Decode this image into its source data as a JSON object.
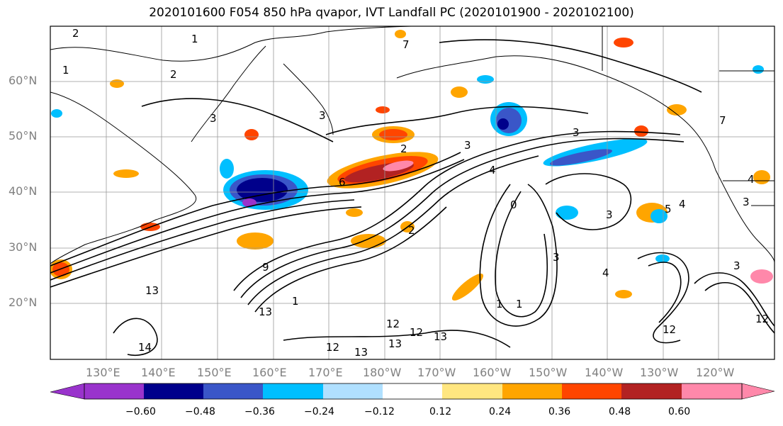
{
  "title": "2020101600 F054 850 hPa qvapor, IVT Landfall PC (2020101900 - 2020102100)",
  "map": {
    "lat_labels": [
      "60°N",
      "50°N",
      "40°N",
      "30°N",
      "20°N"
    ],
    "lon_labels": [
      "130°E",
      "140°E",
      "150°E",
      "160°E",
      "170°E",
      "180°W",
      "170°W",
      "160°W",
      "150°W",
      "140°W",
      "130°W",
      "120°W"
    ],
    "contour_labels": [
      "2",
      "1",
      "1",
      "3",
      "2",
      "3",
      "2",
      "3",
      "4",
      "13",
      "1",
      "9",
      "13",
      "12",
      "13",
      "13",
      "12",
      "13",
      "12",
      "2",
      "3",
      "6",
      "3",
      "3",
      "4",
      "5",
      "4",
      "7",
      "3",
      "4",
      "12",
      "12",
      "14",
      "3",
      "0",
      "1",
      "1",
      "7"
    ],
    "colors": {
      "land_line": "#000000",
      "grid": "#999999"
    }
  },
  "colorbar": {
    "tick_labels": [
      "−0.60",
      "−0.48",
      "−0.36",
      "−0.24",
      "−0.12",
      "0.12",
      "0.24",
      "0.36",
      "0.48",
      "0.60"
    ],
    "colors": [
      "#9933cc",
      "#00008b",
      "#3a56c8",
      "#00bfff",
      "#b0e0ff",
      "#ffffff",
      "#ffe680",
      "#ffa500",
      "#ff4500",
      "#b22222",
      "#ff88aa"
    ]
  }
}
